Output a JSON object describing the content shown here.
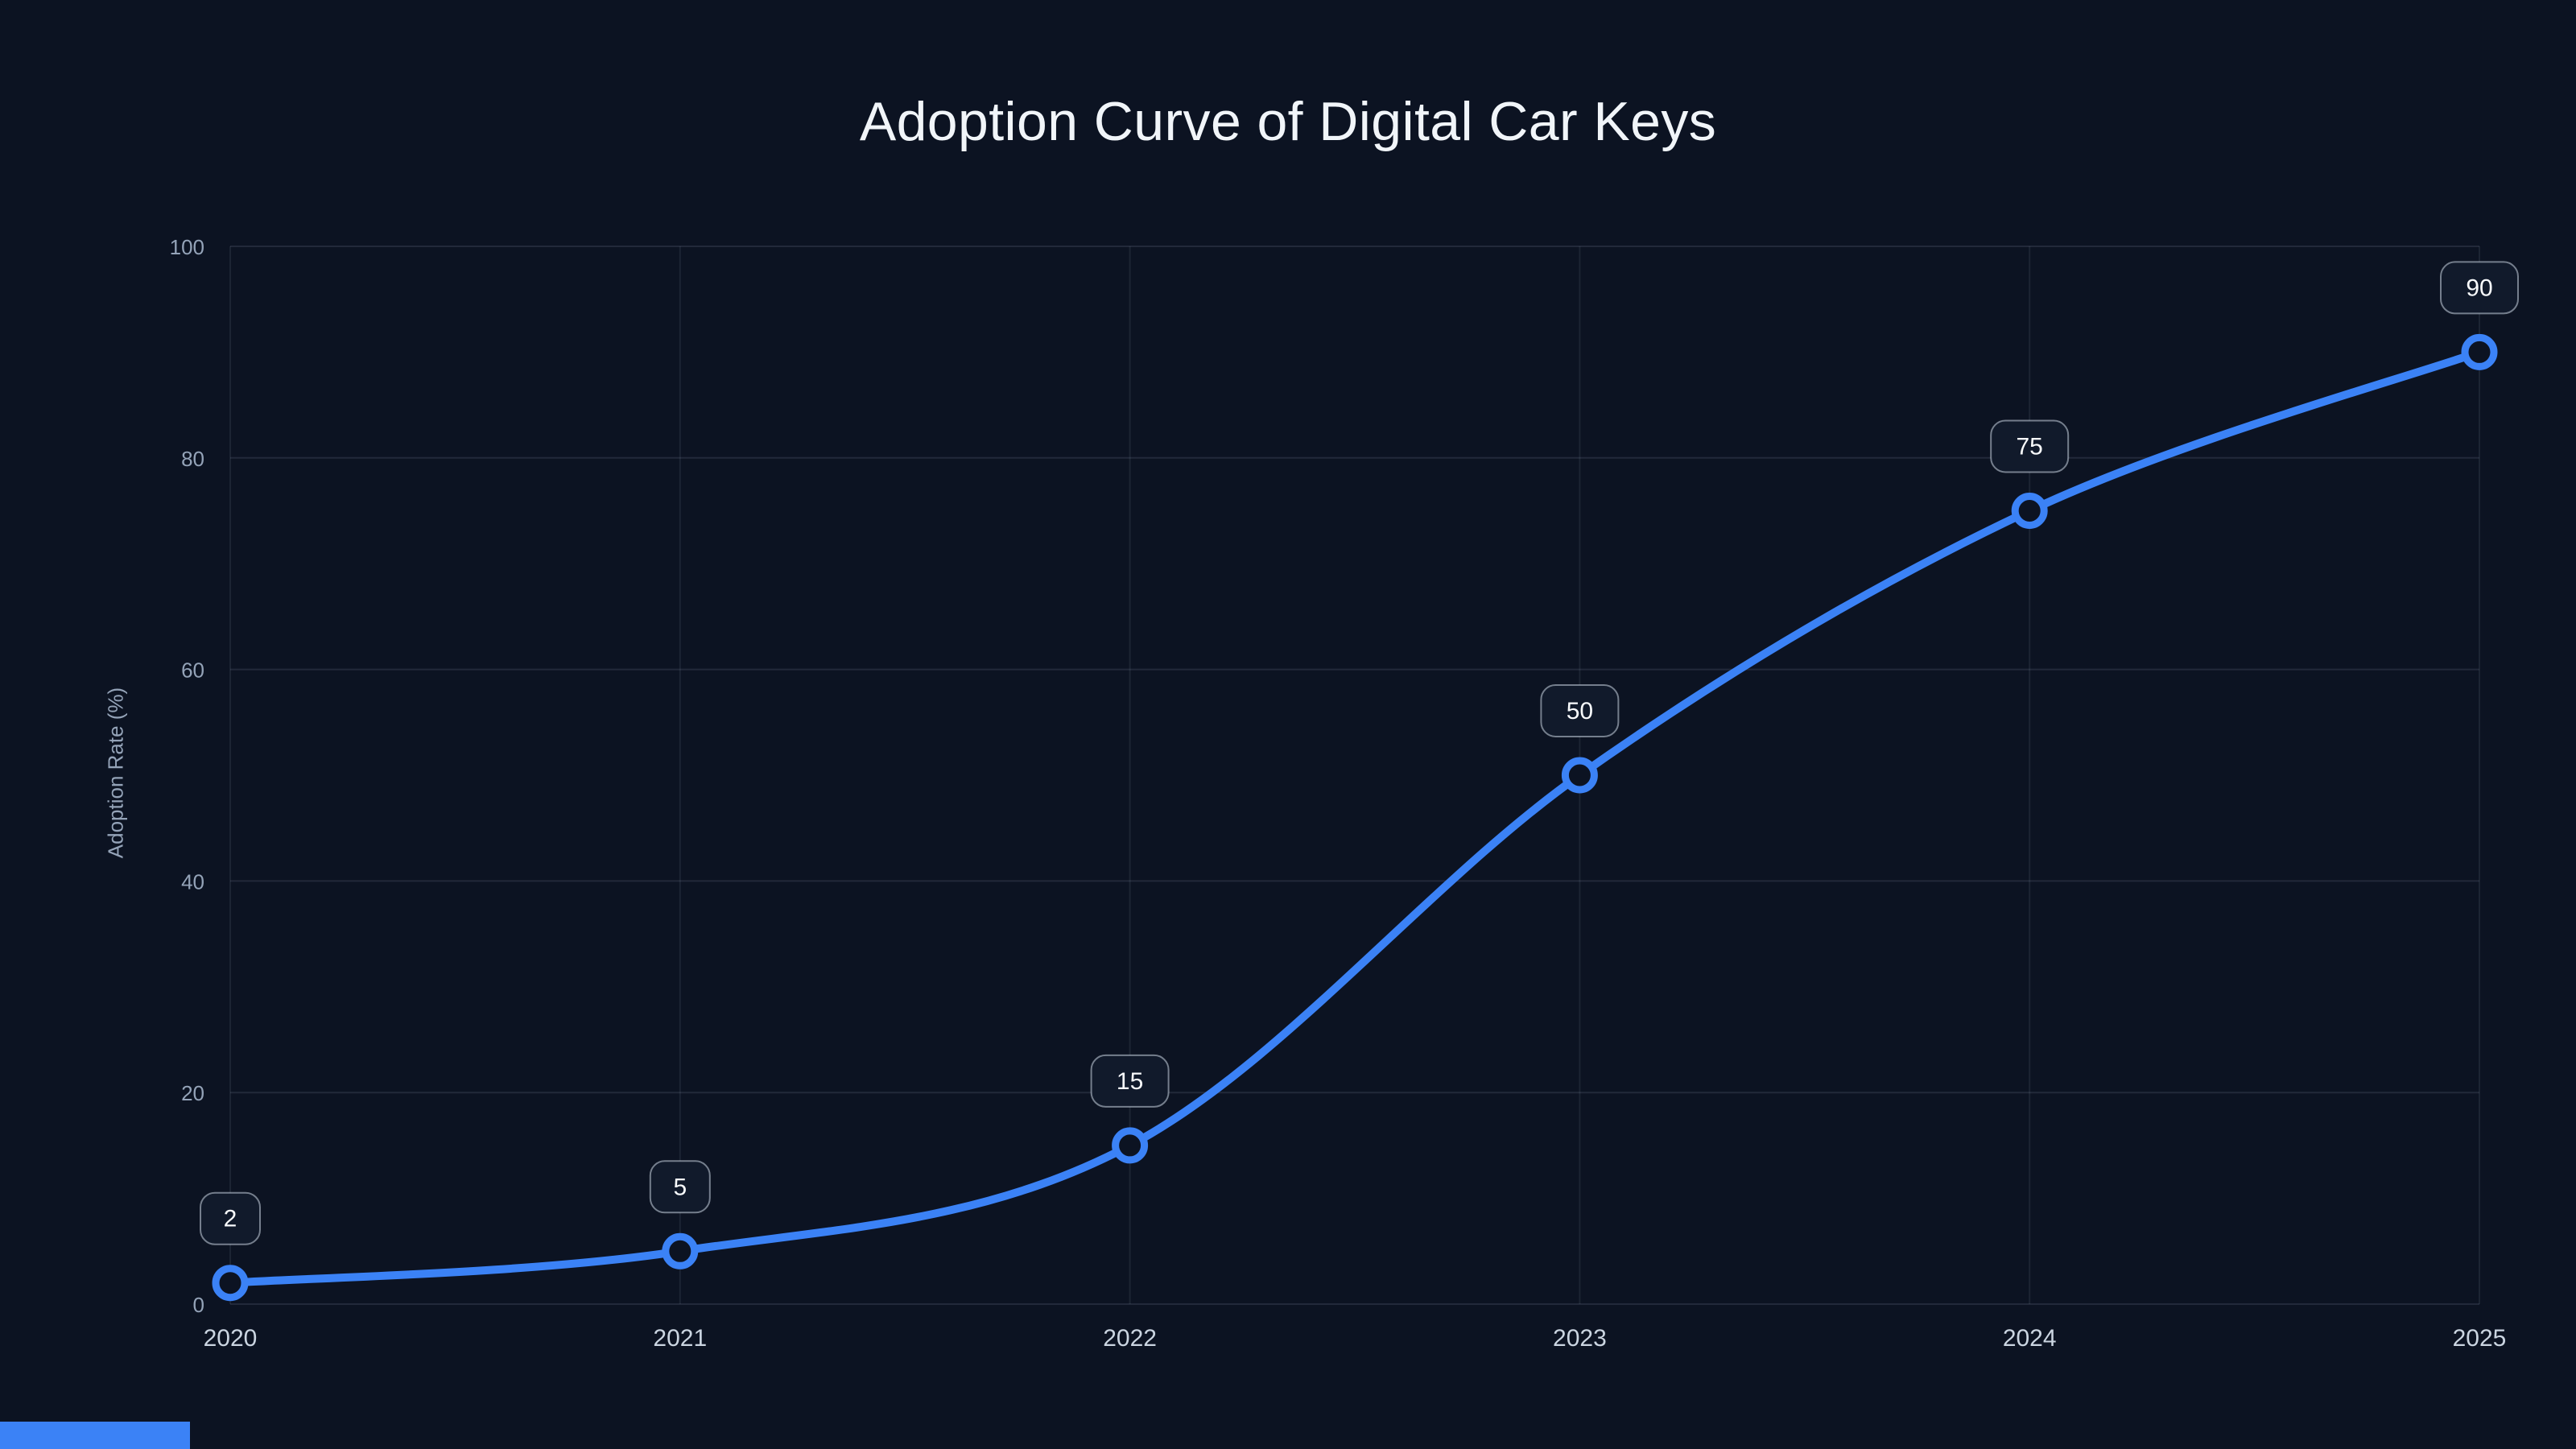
{
  "title": "Adoption Curve of Digital Car Keys",
  "colors": {
    "background": "#0c1322",
    "line": "#3b82f6",
    "marker_fill": "#0c1322",
    "grid": "#94a3b8",
    "tick": "#94a3b8",
    "xtick": "#cbd5e1",
    "label_box_bg": "#111a2b",
    "label_box_border": "#cbd5e1",
    "label_text": "#f8fafc",
    "title": "#f1f5f9",
    "accent_bar": "#3b82f6"
  },
  "chart_data": {
    "type": "line",
    "title": "Adoption Curve of Digital Car Keys",
    "xlabel": "",
    "ylabel": "Adoption Rate (%)",
    "x": [
      2020,
      2021,
      2022,
      2023,
      2024,
      2025
    ],
    "xticks": [
      "2020",
      "2021",
      "2022",
      "2023",
      "2024",
      "2025"
    ],
    "series": [
      {
        "name": "Adoption Rate",
        "values": [
          2,
          5,
          15,
          50,
          75,
          90
        ]
      }
    ],
    "point_labels": [
      "2",
      "5",
      "15",
      "50",
      "75",
      "90"
    ],
    "ylim": [
      0,
      100
    ],
    "yticks": [
      0,
      20,
      40,
      60,
      80,
      100
    ],
    "grid": true,
    "legend": "none"
  }
}
